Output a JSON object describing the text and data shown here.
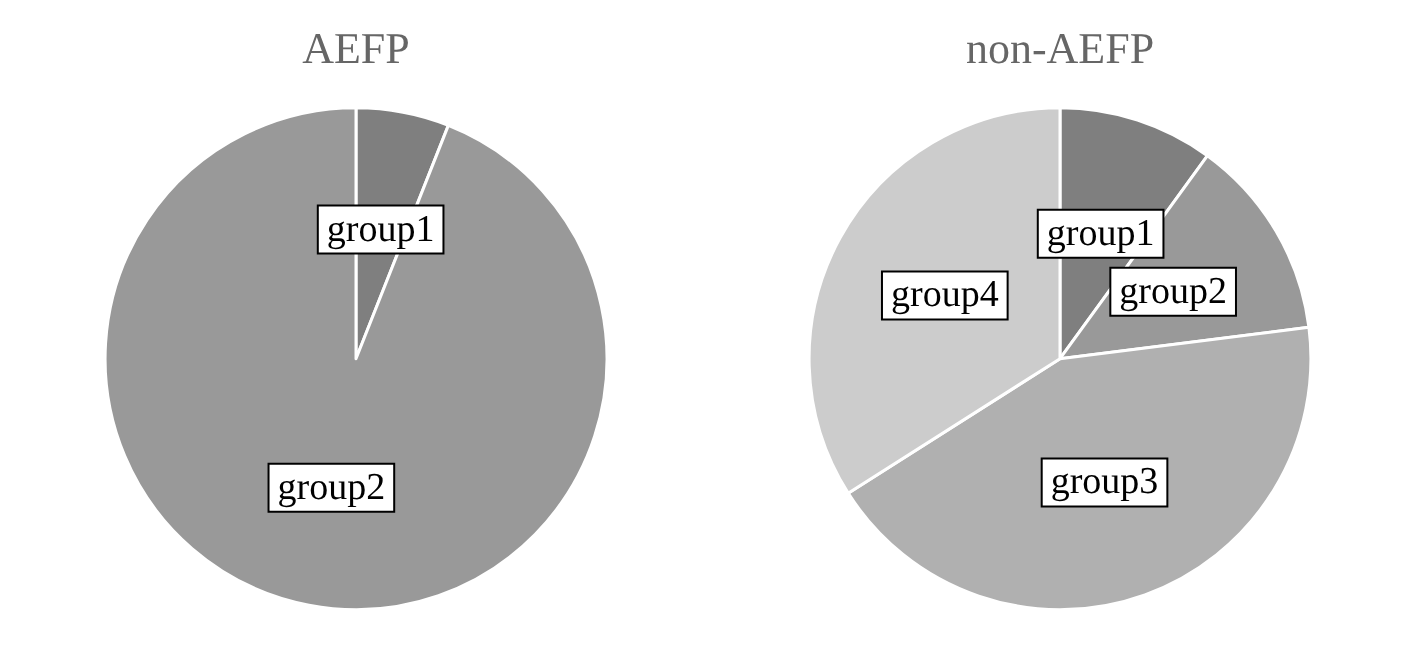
{
  "chart_data": [
    {
      "type": "pie",
      "title": "AEFP",
      "categories": [
        "group1",
        "group2"
      ],
      "values": [
        6,
        94
      ],
      "colors": [
        "#7f7f7f",
        "#999999"
      ]
    },
    {
      "type": "pie",
      "title": "non-AEFP",
      "categories": [
        "group1",
        "group2",
        "group3",
        "group4"
      ],
      "values": [
        10,
        13,
        43,
        34
      ],
      "colors": [
        "#7f7f7f",
        "#999999",
        "#b0b0b0",
        "#cccccc"
      ]
    }
  ]
}
